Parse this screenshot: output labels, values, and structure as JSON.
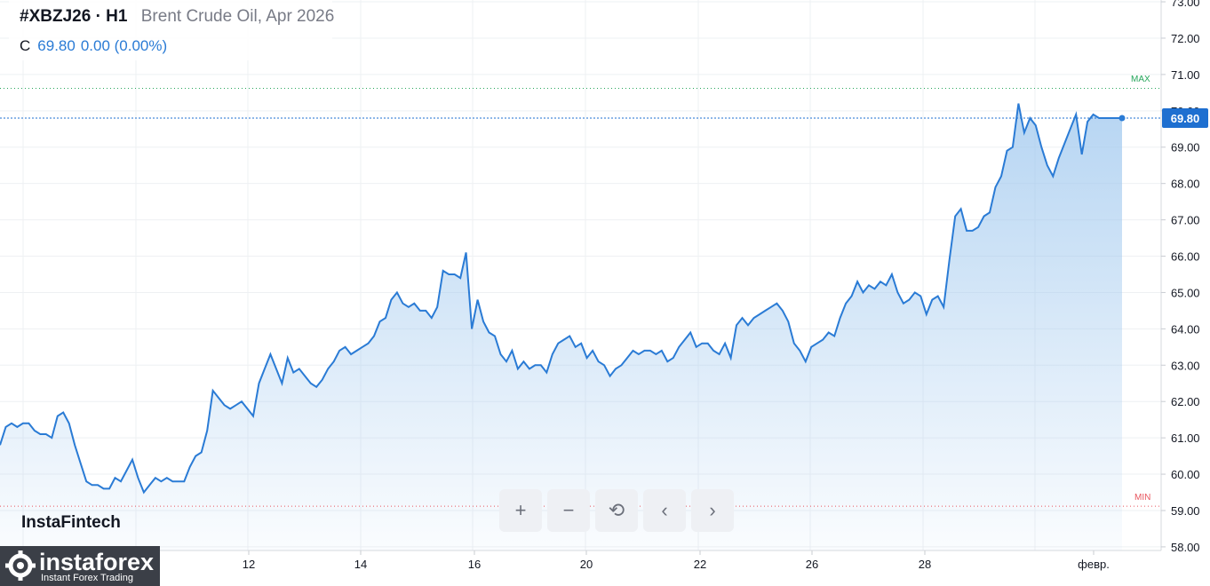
{
  "header": {
    "symbol": "#XBZJ26",
    "separator": "·",
    "timeframe": "H1",
    "description": "Brent Crude Oil, Apr 2026",
    "close_label": "C",
    "close_value": "69.80",
    "change": "0.00 (0.00%)"
  },
  "price_tag": "69.80",
  "markers": {
    "max": "MAX",
    "min": "MIN"
  },
  "watermark": "InstaFintech",
  "logo": {
    "name": "instaforex",
    "subtitle": "Instant Forex Trading"
  },
  "controls": [
    {
      "name": "zoom-in-button",
      "glyph": "+"
    },
    {
      "name": "zoom-out-button",
      "glyph": "−"
    },
    {
      "name": "reset-button",
      "glyph": "⟲"
    },
    {
      "name": "scroll-left-button",
      "glyph": "‹"
    },
    {
      "name": "scroll-right-button",
      "glyph": "›"
    }
  ],
  "colors": {
    "line": "#2a7bd5",
    "fill_top": "#9ec7ee",
    "grid": "#eef0f3",
    "max": "#26a65b",
    "min": "#e8555e",
    "tag": "#1e6fd0"
  },
  "chart_data": {
    "type": "area",
    "title": "",
    "xlabel": "",
    "ylabel": "",
    "ylim": [
      57.9,
      73.05
    ],
    "grid": true,
    "x_ticks": [
      "12",
      "14",
      "16",
      "20",
      "22",
      "26",
      "28",
      "февр."
    ],
    "y_ticks": [
      "58.00",
      "59.00",
      "60.00",
      "61.00",
      "62.00",
      "63.00",
      "64.00",
      "65.00",
      "66.00",
      "67.00",
      "68.00",
      "69.00",
      "70.00",
      "71.00",
      "72.00",
      "73.00"
    ],
    "max_level": 70.62,
    "min_level": 59.12,
    "last_value": 69.8,
    "series": [
      {
        "values": [
          60.8,
          61.3,
          61.4,
          61.3,
          61.4,
          61.4,
          61.2,
          61.1,
          61.1,
          61.0,
          61.6,
          61.7,
          61.4,
          60.8,
          60.3,
          59.8,
          59.7,
          59.7,
          59.6,
          59.6,
          59.9,
          59.8,
          60.1,
          60.4,
          59.9,
          59.5,
          59.7,
          59.9,
          59.8,
          59.9,
          59.8,
          59.8,
          59.8,
          60.2,
          60.5,
          60.6,
          61.2,
          62.3,
          62.1,
          61.9,
          61.8,
          61.9,
          62.0,
          61.8,
          61.6,
          62.5,
          62.9,
          63.3,
          62.9,
          62.5,
          63.2,
          62.8,
          62.9,
          62.7,
          62.5,
          62.4,
          62.6,
          62.9,
          63.1,
          63.4,
          63.5,
          63.3,
          63.4,
          63.5,
          63.6,
          63.8,
          64.2,
          64.3,
          64.8,
          65.0,
          64.7,
          64.6,
          64.7,
          64.5,
          64.5,
          64.3,
          64.6,
          65.6,
          65.5,
          65.5,
          65.4,
          66.1,
          64.0,
          64.8,
          64.2,
          63.9,
          63.8,
          63.3,
          63.1,
          63.4,
          62.9,
          63.1,
          62.9,
          63.0,
          63.0,
          62.8,
          63.3,
          63.6,
          63.7,
          63.8,
          63.5,
          63.6,
          63.2,
          63.4,
          63.1,
          63.0,
          62.7,
          62.9,
          63.0,
          63.2,
          63.4,
          63.3,
          63.4,
          63.4,
          63.3,
          63.4,
          63.1,
          63.2,
          63.5,
          63.7,
          63.9,
          63.5,
          63.6,
          63.6,
          63.4,
          63.3,
          63.6,
          63.2,
          64.1,
          64.3,
          64.1,
          64.3,
          64.4,
          64.5,
          64.6,
          64.7,
          64.5,
          64.2,
          63.6,
          63.4,
          63.1,
          63.5,
          63.6,
          63.7,
          63.9,
          63.8,
          64.3,
          64.7,
          64.9,
          65.3,
          65.0,
          65.2,
          65.1,
          65.3,
          65.2,
          65.5,
          65.0,
          64.7,
          64.8,
          65.0,
          64.9,
          64.4,
          64.8,
          64.9,
          64.6,
          65.9,
          67.1,
          67.3,
          66.7,
          66.7,
          66.8,
          67.1,
          67.2,
          67.9,
          68.2,
          68.9,
          69.0,
          70.2,
          69.4,
          69.8,
          69.6,
          69.0,
          68.5,
          68.2,
          68.7,
          69.1,
          69.5,
          69.9,
          68.8,
          69.7,
          69.9,
          69.8,
          69.8,
          69.8,
          69.8,
          69.8
        ]
      }
    ]
  }
}
